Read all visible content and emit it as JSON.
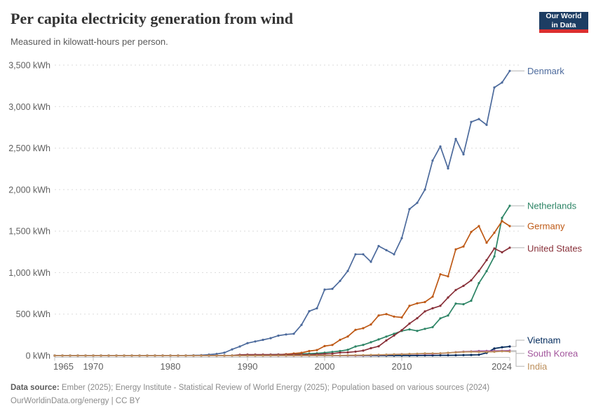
{
  "header": {
    "title": "Per capita electricity generation from wind",
    "subtitle": "Measured in kilowatt-hours per person.",
    "logo": {
      "line1": "Our World",
      "line2": "in Data",
      "bg": "#1d3d63",
      "accent": "#dc2f2f"
    }
  },
  "footer": {
    "source_label": "Data source:",
    "source_text": " Ember (2025); Energy Institute - Statistical Review of World Energy (2025); Population based on various sources (2024)",
    "link_line": "OurWorldinData.org/energy | CC BY"
  },
  "chart_data": {
    "type": "line",
    "title": "Per capita electricity generation from wind",
    "ylabel": "kWh per person",
    "xlim": [
      1965,
      2024
    ],
    "ylim": [
      0,
      3500
    ],
    "xticks": [
      1965,
      1970,
      1980,
      1990,
      2000,
      2010,
      2024
    ],
    "yticks": [
      0,
      500,
      1000,
      1500,
      2000,
      2500,
      3000,
      3500
    ],
    "ytick_labels": [
      "0 kWh",
      "500 kWh",
      "1,000 kWh",
      "1,500 kWh",
      "2,000 kWh",
      "2,500 kWh",
      "3,000 kWh",
      "3,500 kWh"
    ],
    "grid": "horizontal-dashed",
    "legend_position": "right-edge-colored-labels",
    "x_step_years": 1,
    "series": [
      {
        "name": "Denmark",
        "color": "#4C6A9C",
        "label_dy": 0,
        "values": [
          0,
          0,
          0,
          0,
          0,
          0,
          0,
          0,
          0,
          0,
          0,
          0,
          0,
          1,
          1,
          1,
          2,
          2,
          3,
          6,
          12,
          20,
          35,
          75,
          110,
          150,
          170,
          190,
          210,
          240,
          255,
          263,
          370,
          535,
          570,
          795,
          805,
          900,
          1020,
          1220,
          1220,
          1130,
          1320,
          1270,
          1220,
          1415,
          1765,
          1840,
          2000,
          2350,
          2520,
          2255,
          2610,
          2425,
          2815,
          2850,
          2780,
          3230,
          3290,
          3430
        ]
      },
      {
        "name": "Netherlands",
        "color": "#2C8465",
        "label_dy": 0,
        "values": [
          0,
          0,
          0,
          0,
          0,
          0,
          0,
          0,
          0,
          0,
          0,
          0,
          0,
          0,
          0,
          0,
          0,
          0,
          0,
          0,
          0,
          0,
          1,
          1,
          2,
          4,
          6,
          8,
          11,
          13,
          15,
          17,
          21,
          24,
          28,
          35,
          45,
          55,
          70,
          110,
          129,
          161,
          195,
          229,
          263,
          297,
          315,
          298,
          322,
          343,
          449,
          483,
          627,
          619,
          661,
          873,
          1017,
          1195,
          1660,
          1805
        ]
      },
      {
        "name": "Germany",
        "color": "#BE5915",
        "label_dy": 0,
        "values": [
          0,
          0,
          0,
          0,
          0,
          0,
          0,
          0,
          0,
          0,
          0,
          0,
          0,
          0,
          0,
          0,
          0,
          0,
          0,
          0,
          0,
          0,
          0,
          0,
          1,
          1,
          3,
          4,
          7,
          11,
          17,
          25,
          34,
          55,
          67,
          115,
          128,
          190,
          230,
          310,
          330,
          375,
          483,
          500,
          470,
          460,
          600,
          630,
          645,
          710,
          980,
          955,
          1280,
          1315,
          1490,
          1560,
          1360,
          1480,
          1620,
          1560
        ]
      },
      {
        "name": "United States",
        "color": "#883039",
        "label_dy": 1,
        "values": [
          0,
          0,
          0,
          0,
          0,
          0,
          0,
          0,
          0,
          0,
          0,
          0,
          0,
          0,
          0,
          0,
          0,
          0,
          0,
          1,
          1,
          1,
          1,
          1,
          9,
          12,
          12,
          12,
          12,
          13,
          12,
          13,
          12,
          11,
          16,
          20,
          24,
          36,
          39,
          48,
          60,
          89,
          112,
          182,
          242,
          306,
          386,
          450,
          532,
          570,
          600,
          700,
          790,
          840,
          907,
          1020,
          1150,
          1290,
          1245,
          1300
        ]
      },
      {
        "name": "Vietnam",
        "color": "#00295B",
        "label_dy": -9,
        "values": [
          0,
          0,
          0,
          0,
          0,
          0,
          0,
          0,
          0,
          0,
          0,
          0,
          0,
          0,
          0,
          0,
          0,
          0,
          0,
          0,
          0,
          0,
          0,
          0,
          0,
          0,
          0,
          0,
          0,
          0,
          0,
          0,
          0,
          0,
          0,
          0,
          0,
          0,
          0,
          0,
          0,
          0,
          0,
          0,
          0,
          0,
          0,
          1,
          2,
          2,
          3,
          3,
          4,
          6,
          8,
          10,
          33,
          85,
          100,
          110
        ]
      },
      {
        "name": "South Korea",
        "color": "#A2559C",
        "label_dy": 4,
        "values": [
          0,
          0,
          0,
          0,
          0,
          0,
          0,
          0,
          0,
          0,
          0,
          0,
          0,
          0,
          0,
          0,
          0,
          0,
          0,
          0,
          0,
          0,
          0,
          0,
          0,
          0,
          0,
          0,
          0,
          0,
          0,
          0,
          0,
          0,
          0,
          1,
          1,
          1,
          1,
          1,
          3,
          5,
          8,
          9,
          14,
          17,
          18,
          19,
          22,
          21,
          27,
          32,
          41,
          47,
          51,
          55,
          56,
          57,
          58,
          60
        ]
      },
      {
        "name": "India",
        "color": "#BC8E5A",
        "label_dy": 21,
        "values": [
          0,
          0,
          0,
          0,
          0,
          0,
          0,
          0,
          0,
          0,
          0,
          0,
          0,
          0,
          0,
          0,
          0,
          0,
          0,
          0,
          0,
          0,
          0,
          0,
          0,
          0,
          0,
          0,
          1,
          1,
          1,
          1,
          1,
          1,
          1,
          2,
          2,
          2,
          3,
          4,
          6,
          8,
          10,
          12,
          15,
          16,
          20,
          23,
          26,
          27,
          28,
          34,
          39,
          44,
          46,
          44,
          45,
          46,
          52,
          48
        ]
      }
    ]
  }
}
